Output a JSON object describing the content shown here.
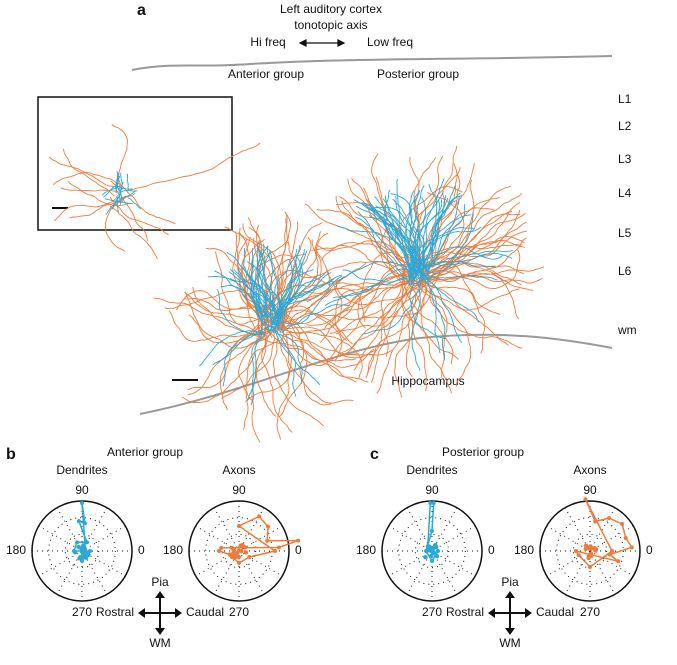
{
  "panel_a": {
    "label": "a",
    "title_lines": [
      "Left auditory cortex",
      "tonotopic axis"
    ],
    "hi_freq": "Hi freq",
    "low_freq": "Low freq",
    "anterior": "Anterior group",
    "posterior": "Posterior group",
    "layers": [
      "L1",
      "L2",
      "L3",
      "L4",
      "L5",
      "L6",
      "wm"
    ],
    "hippocampus": "Hippocampus"
  },
  "panels_bc": [
    {
      "label": "b",
      "title": "Anterior group",
      "plots": [
        "Dendrites",
        "Axons"
      ]
    },
    {
      "label": "c",
      "title": "Posterior group",
      "plots": [
        "Dendrites",
        "Axons"
      ]
    }
  ],
  "polar_angles": [
    "90",
    "180",
    "0",
    "270"
  ],
  "compass": [
    "Pia",
    "Rostral",
    "Caudal",
    "WM"
  ]
}
